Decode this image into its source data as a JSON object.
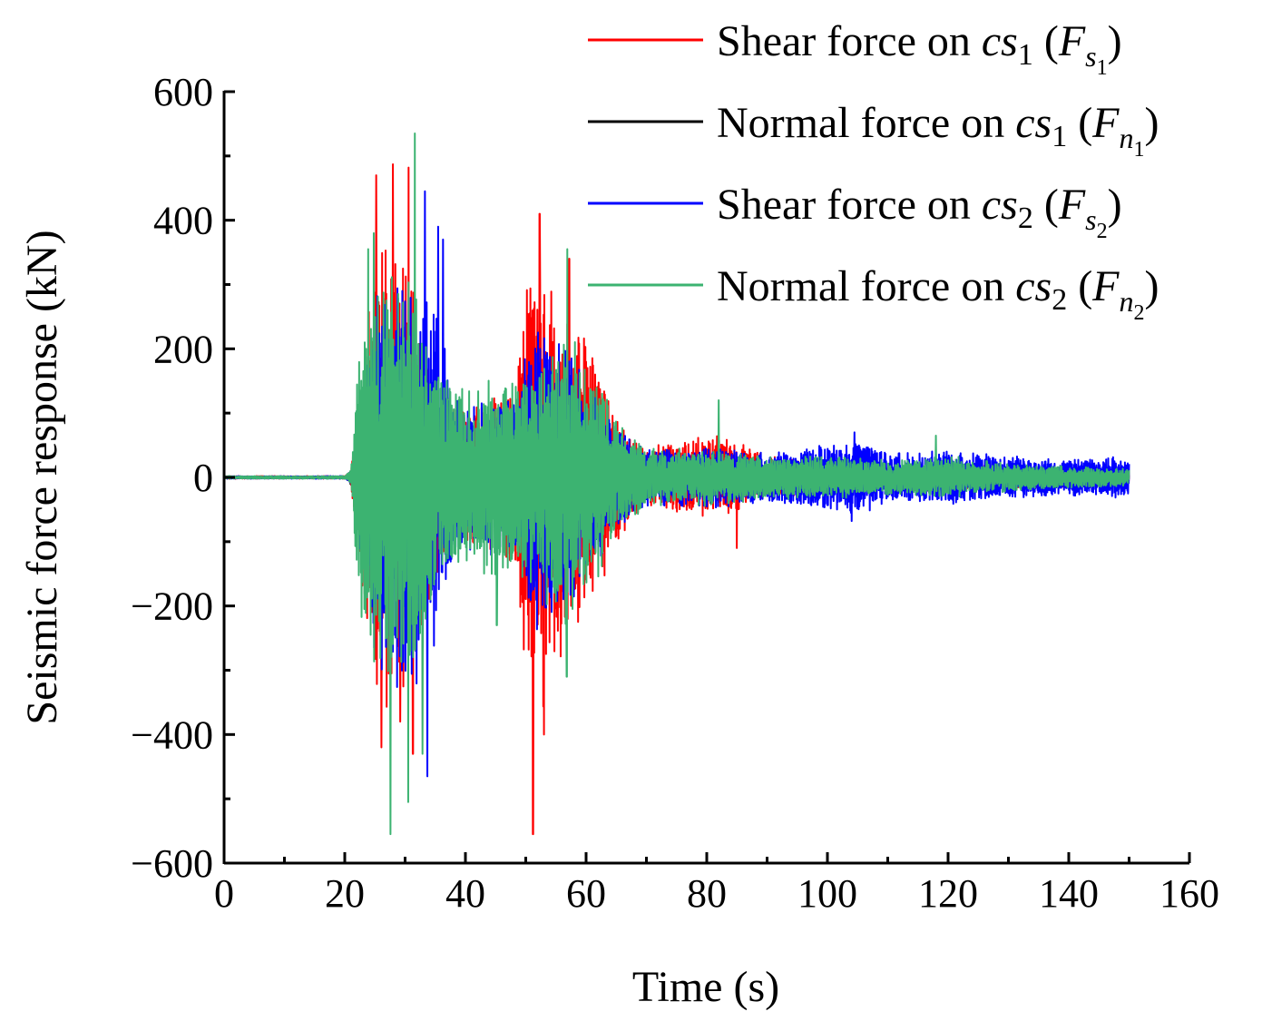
{
  "chart_data": {
    "type": "line",
    "title": "",
    "xlabel": "Time (s)",
    "ylabel": "Seismic force response (kN)",
    "xlim": [
      0,
      160
    ],
    "ylim": [
      -600,
      600
    ],
    "xticks": [
      0,
      20,
      40,
      60,
      80,
      100,
      120,
      140,
      160
    ],
    "xtick_labels": [
      "0",
      "20",
      "40",
      "60",
      "80",
      "100",
      "120",
      "140",
      "160"
    ],
    "yticks": [
      -600,
      -400,
      -200,
      0,
      200,
      400,
      600
    ],
    "ytick_labels": [
      "−600",
      "−400",
      "−200",
      "0",
      "200",
      "400",
      "600"
    ],
    "grid": false,
    "legend_position": "top-right",
    "record_start": 0,
    "record_end": 150,
    "series": [
      {
        "name": "Shear force on cs1 (Fs1)",
        "legend": {
          "prefix": "Shear force on ",
          "var": "cs",
          "sub": "1",
          "force": "F",
          "force_sub": "s",
          "force_subsub": "1"
        },
        "color": "#ff0000",
        "envelope_times": [
          0,
          20,
          21,
          22,
          24,
          26,
          28,
          30,
          32,
          34,
          36,
          38,
          40,
          44,
          48,
          50,
          52,
          54,
          56,
          58,
          60,
          62,
          64,
          66,
          68,
          70,
          75,
          80,
          85,
          90,
          100,
          110,
          120,
          130,
          140,
          150
        ],
        "envelope_amplitudes": [
          2,
          2,
          8,
          100,
          240,
          330,
          330,
          300,
          250,
          170,
          140,
          110,
          100,
          110,
          130,
          260,
          360,
          300,
          250,
          230,
          200,
          160,
          110,
          80,
          60,
          40,
          50,
          60,
          50,
          30,
          25,
          20,
          20,
          15,
          15,
          12
        ],
        "peaks": [
          {
            "t": 25.2,
            "v": 470
          },
          {
            "t": 26.1,
            "v": -420
          },
          {
            "t": 28.0,
            "v": 487
          },
          {
            "t": 29.2,
            "v": -380
          },
          {
            "t": 30.6,
            "v": 482
          },
          {
            "t": 31.3,
            "v": -430
          },
          {
            "t": 51.2,
            "v": -555
          },
          {
            "t": 52.3,
            "v": 410
          },
          {
            "t": 53.0,
            "v": -400
          },
          {
            "t": 57.2,
            "v": 340
          },
          {
            "t": 85.0,
            "v": -110
          }
        ]
      },
      {
        "name": "Normal force on cs1 (Fn1)",
        "legend": {
          "prefix": "Normal force on ",
          "var": "cs",
          "sub": "1",
          "force": "F",
          "force_sub": "n",
          "force_subsub": "1"
        },
        "color": "#000000",
        "envelope_times": [
          0,
          20,
          22,
          30,
          40,
          50,
          60,
          70,
          150
        ],
        "envelope_amplitudes": [
          1,
          1,
          20,
          40,
          30,
          40,
          30,
          15,
          8
        ],
        "peaks": []
      },
      {
        "name": "Shear force on cs2 (Fs2)",
        "legend": {
          "prefix": "Shear force on ",
          "var": "cs",
          "sub": "2",
          "force": "F",
          "force_sub": "s",
          "force_subsub": "2"
        },
        "color": "#0000ff",
        "envelope_times": [
          0,
          20,
          21,
          22,
          24,
          26,
          28,
          30,
          32,
          34,
          36,
          38,
          40,
          44,
          48,
          50,
          52,
          54,
          56,
          58,
          60,
          62,
          64,
          66,
          68,
          70,
          75,
          80,
          85,
          90,
          100,
          105,
          110,
          120,
          130,
          140,
          150
        ],
        "envelope_amplitudes": [
          2,
          2,
          8,
          90,
          210,
          280,
          300,
          310,
          300,
          280,
          200,
          120,
          100,
          110,
          120,
          190,
          230,
          200,
          190,
          170,
          150,
          120,
          100,
          70,
          50,
          40,
          40,
          45,
          40,
          35,
          45,
          55,
          35,
          40,
          30,
          25,
          30
        ],
        "peaks": [
          {
            "t": 33.3,
            "v": 445
          },
          {
            "t": 33.7,
            "v": -465
          },
          {
            "t": 35.5,
            "v": 390
          },
          {
            "t": 36.3,
            "v": 370
          },
          {
            "t": 104.5,
            "v": 70
          },
          {
            "t": 104.0,
            "v": -68
          }
        ]
      },
      {
        "name": "Normal force on cs2 (Fn2)",
        "legend": {
          "prefix": "Normal force on ",
          "var": "cs",
          "sub": "2",
          "force": "F",
          "force_sub": "n",
          "force_subsub": "2"
        },
        "color": "#3cb371",
        "envelope_times": [
          0,
          20,
          21,
          22,
          24,
          26,
          28,
          30,
          32,
          34,
          36,
          38,
          40,
          44,
          48,
          50,
          52,
          54,
          56,
          58,
          60,
          62,
          64,
          66,
          68,
          70,
          75,
          80,
          85,
          90,
          100,
          110,
          120,
          130,
          140,
          150
        ],
        "envelope_amplitudes": [
          2,
          2,
          10,
          150,
          260,
          300,
          300,
          300,
          280,
          230,
          170,
          140,
          120,
          140,
          150,
          150,
          170,
          190,
          200,
          200,
          160,
          140,
          100,
          70,
          60,
          40,
          40,
          40,
          35,
          30,
          30,
          25,
          30,
          20,
          15,
          12
        ],
        "peaks": [
          {
            "t": 23.9,
            "v": 355
          },
          {
            "t": 24.8,
            "v": 380
          },
          {
            "t": 27.6,
            "v": -555
          },
          {
            "t": 30.5,
            "v": -505
          },
          {
            "t": 31.6,
            "v": 535
          },
          {
            "t": 32.9,
            "v": -430
          },
          {
            "t": 56.9,
            "v": 355
          },
          {
            "t": 56.8,
            "v": -310
          },
          {
            "t": 45.2,
            "v": -230
          },
          {
            "t": 82.0,
            "v": 120
          },
          {
            "t": 118.0,
            "v": 65
          }
        ]
      }
    ]
  }
}
